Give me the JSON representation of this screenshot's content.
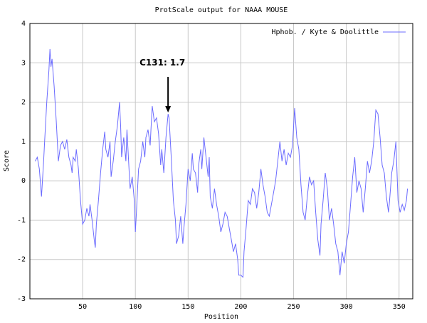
{
  "chart_data": {
    "type": "line",
    "title": "ProtScale output for NAAA MOUSE",
    "xlabel": "Position",
    "ylabel": "Score",
    "x": [
      5,
      7,
      9,
      11,
      13,
      14,
      16,
      18,
      19,
      20,
      21,
      23,
      25,
      27,
      29,
      31,
      33,
      35,
      37,
      39,
      40,
      41,
      43,
      44,
      46,
      48,
      50,
      52,
      54,
      56,
      57,
      59,
      61,
      62,
      63,
      65,
      67,
      69,
      71,
      72,
      74,
      76,
      77,
      79,
      81,
      83,
      85,
      86,
      87,
      89,
      91,
      92,
      94,
      95,
      97,
      99,
      100,
      101,
      103,
      105,
      107,
      109,
      110,
      112,
      114,
      115,
      116,
      118,
      120,
      122,
      124,
      125,
      127,
      129,
      131,
      132,
      134,
      136,
      138,
      139,
      141,
      143,
      145,
      146,
      148,
      150,
      152,
      154,
      155,
      157,
      159,
      160,
      162,
      163,
      165,
      167,
      169,
      170,
      171,
      173,
      175,
      177,
      179,
      181,
      183,
      185,
      187,
      189,
      191,
      193,
      195,
      197,
      198,
      200,
      202,
      203,
      205,
      207,
      209,
      211,
      213,
      215,
      217,
      219,
      221,
      223,
      225,
      227,
      229,
      231,
      233,
      235,
      237,
      239,
      241,
      243,
      245,
      247,
      249,
      251,
      253,
      255,
      257,
      259,
      261,
      263,
      265,
      267,
      269,
      271,
      273,
      275,
      276,
      278,
      280,
      282,
      284,
      286,
      288,
      290,
      292,
      294,
      296,
      298,
      300,
      302,
      304,
      306,
      308,
      310,
      312,
      314,
      316,
      318,
      320,
      322,
      324,
      326,
      328,
      330,
      332,
      334,
      336,
      338,
      340,
      341,
      343,
      345,
      347,
      349,
      351,
      353,
      355,
      357,
      358
    ],
    "series": [
      {
        "name": "Hphob. / Kyte & Doolittle",
        "color": "#6b6bff",
        "values": [
          0.5,
          0.6,
          0.3,
          -0.4,
          0.5,
          1.0,
          2.0,
          2.8,
          3.35,
          2.9,
          3.1,
          2.4,
          1.5,
          0.5,
          0.9,
          1.0,
          0.8,
          1.05,
          0.6,
          0.4,
          0.2,
          0.6,
          0.5,
          0.8,
          0.3,
          -0.5,
          -1.1,
          -1.0,
          -0.7,
          -0.9,
          -0.6,
          -1.0,
          -1.5,
          -1.7,
          -1.1,
          -0.5,
          0.2,
          0.8,
          1.25,
          0.8,
          0.6,
          1.0,
          0.1,
          0.5,
          1.0,
          1.4,
          2.0,
          1.4,
          0.6,
          1.1,
          0.5,
          1.3,
          0.3,
          -0.2,
          0.1,
          -0.5,
          -1.3,
          -0.8,
          0.3,
          0.5,
          1.0,
          0.6,
          1.1,
          1.3,
          0.9,
          1.4,
          1.9,
          1.5,
          1.6,
          1.2,
          0.4,
          0.8,
          0.2,
          1.1,
          1.7,
          1.6,
          0.6,
          -0.5,
          -1.0,
          -1.6,
          -1.4,
          -0.9,
          -1.6,
          -1.2,
          -0.6,
          0.3,
          0.0,
          0.7,
          0.3,
          0.2,
          -0.3,
          0.4,
          0.8,
          0.3,
          1.1,
          0.6,
          0.1,
          0.6,
          -0.4,
          -0.7,
          -0.2,
          -0.6,
          -0.9,
          -1.3,
          -1.1,
          -0.8,
          -0.9,
          -1.2,
          -1.5,
          -1.8,
          -1.6,
          -2.0,
          -2.4,
          -2.4,
          -2.45,
          -1.8,
          -1.2,
          -0.5,
          -0.6,
          -0.2,
          -0.3,
          -0.7,
          -0.3,
          0.3,
          -0.1,
          -0.4,
          -0.8,
          -0.9,
          -0.6,
          -0.3,
          0.0,
          0.5,
          1.0,
          0.5,
          0.8,
          0.4,
          0.7,
          0.6,
          0.9,
          1.85,
          1.1,
          0.8,
          -0.1,
          -0.8,
          -1.0,
          -0.4,
          0.1,
          -0.1,
          0.0,
          -0.8,
          -1.5,
          -1.9,
          -1.1,
          -0.5,
          0.2,
          -0.2,
          -1.0,
          -0.7,
          -1.1,
          -1.6,
          -1.8,
          -2.4,
          -1.8,
          -2.1,
          -1.6,
          -1.3,
          -0.6,
          0.1,
          0.6,
          -0.3,
          0.0,
          -0.2,
          -0.8,
          -0.2,
          0.5,
          0.2,
          0.5,
          1.0,
          1.8,
          1.7,
          1.1,
          0.4,
          0.2,
          -0.4,
          -0.8,
          -0.5,
          0.2,
          0.5,
          1.0,
          -0.5,
          -0.8,
          -0.6,
          -0.75,
          -0.5,
          -0.2
        ]
      }
    ],
    "xlim": [
      0,
      363
    ],
    "xticks": [
      50,
      100,
      150,
      200,
      250,
      300,
      350
    ],
    "ylim": [
      -3,
      4
    ],
    "yticks": [
      -3,
      -2,
      -1,
      0,
      1,
      2,
      3,
      4
    ],
    "grid": true,
    "legend": "upper right",
    "annotations": [
      {
        "text": "C131: 1.7",
        "x": 131,
        "y": 1.7
      }
    ]
  }
}
